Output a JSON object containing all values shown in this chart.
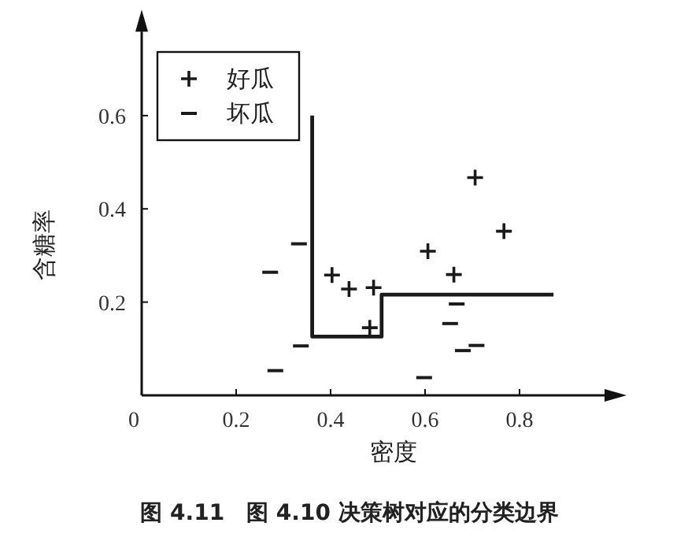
{
  "chart_data": {
    "type": "scatter",
    "xlabel": "密度",
    "ylabel": "含糖率",
    "annotations": [
      "图 4.11　图 4.10 决策树对应的分类边界"
    ],
    "xlim": [
      0,
      0.98
    ],
    "ylim": [
      0,
      0.78
    ],
    "xticks": [
      {
        "value": 0,
        "label": "0"
      },
      0.2,
      0.4,
      0.6,
      0.8
    ],
    "yticks": [
      0.2,
      0.4,
      0.6
    ],
    "legend": "top left",
    "grid": false,
    "series": [
      {
        "name": "好瓜",
        "color": "#1a1a1a",
        "marker": "cross",
        "x": [
          0.403,
          0.439,
          0.491,
          0.483,
          0.606,
          0.661,
          0.706,
          0.767
        ],
        "values": [
          0.258,
          0.228,
          0.231,
          0.145,
          0.309,
          0.259,
          0.467,
          0.352
        ]
      },
      {
        "name": "坏瓜",
        "color": "#1a1a1a",
        "x": [
          0.272,
          0.333,
          0.337,
          0.283,
          0.598,
          0.667,
          0.653,
          0.68,
          0.709
        ],
        "values": [
          0.264,
          0.325,
          0.106,
          0.053,
          0.038,
          0.196,
          0.154,
          0.096,
          0.107
        ]
      },
      {
        "type": "line",
        "color": "#1a1a1a",
        "x": [
          0.361,
          0.361,
          0.508,
          0.508,
          0.872
        ],
        "values": [
          0.6,
          0.126,
          0.126,
          0.216,
          0.216
        ]
      }
    ]
  }
}
